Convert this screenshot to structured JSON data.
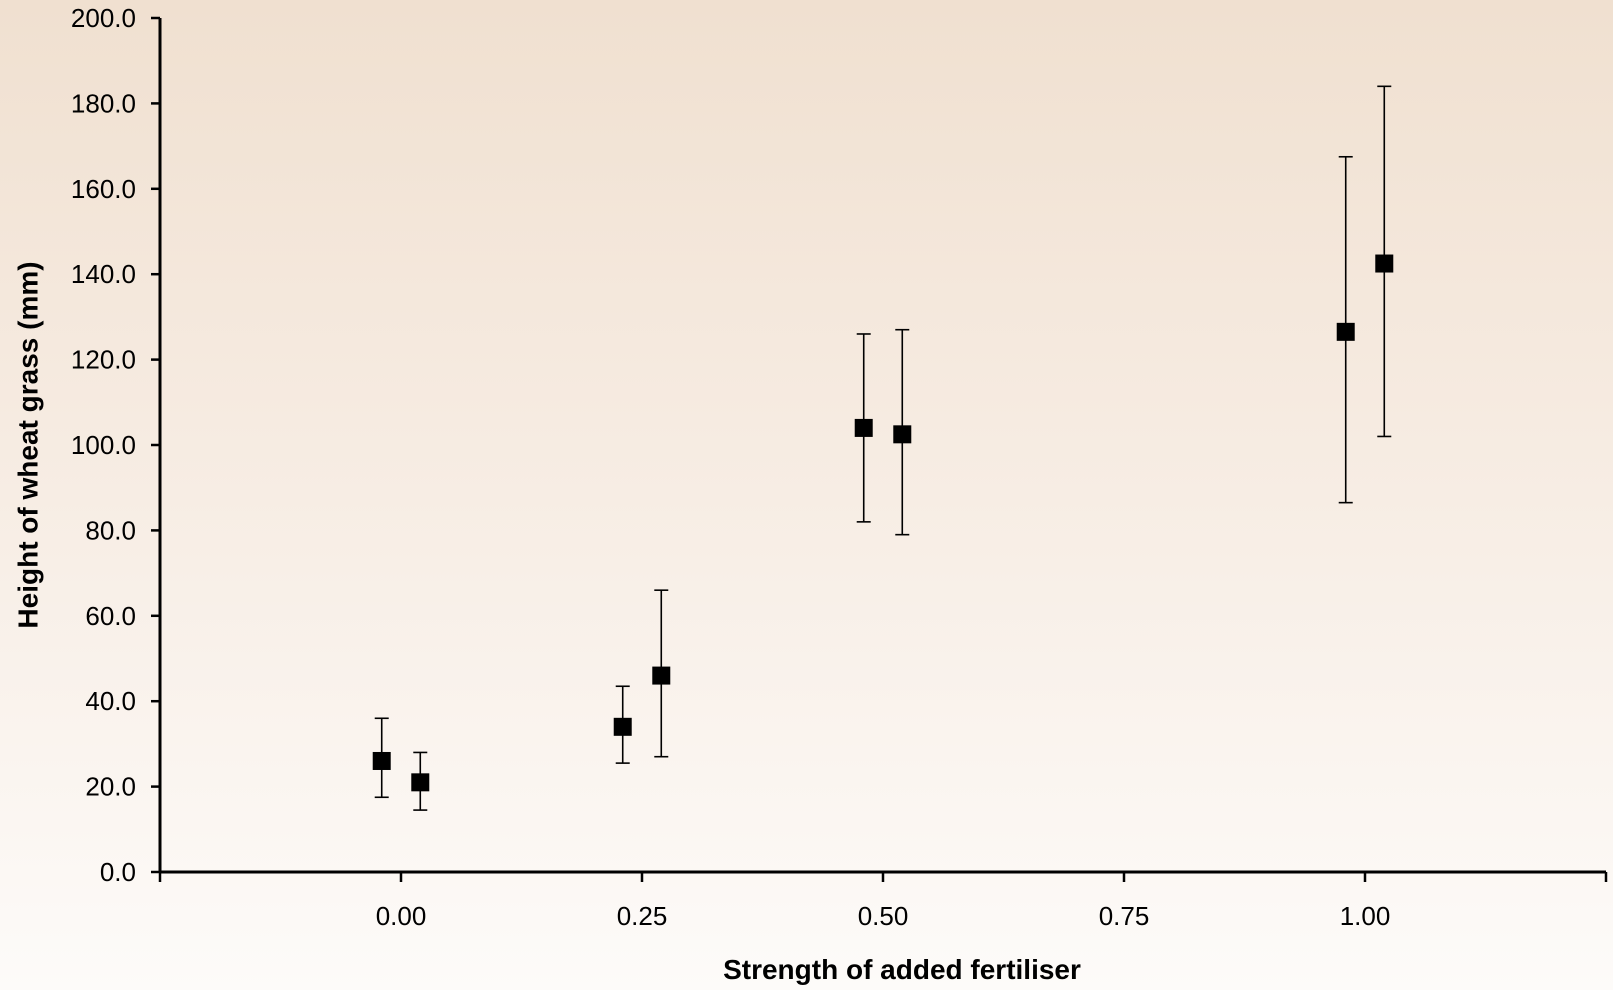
{
  "chart_data": {
    "type": "scatter",
    "title": "",
    "xlabel": "Strength of added fertiliser",
    "ylabel": "Height of wheat grass (mm)",
    "xlim": [
      -0.25,
      1.25
    ],
    "ylim": [
      0,
      200
    ],
    "x_ticks": [
      0,
      0.25,
      0.5,
      0.75,
      1.0
    ],
    "x_tick_labels": [
      "0.00",
      "0.25",
      "0.50",
      "0.75",
      "1.00"
    ],
    "y_ticks": [
      0,
      20,
      40,
      60,
      80,
      100,
      120,
      140,
      160,
      180,
      200
    ],
    "y_tick_labels": [
      "0.0",
      "20.0",
      "40.0",
      "60.0",
      "80.0",
      "100.0",
      "120.0",
      "140.0",
      "160.0",
      "180.0",
      "200.0"
    ],
    "grid": false,
    "legend": "none",
    "marker_color": "#000000",
    "points": [
      {
        "x": -0.02,
        "y": 26,
        "err_low": 17.5,
        "err_high": 36
      },
      {
        "x": 0.02,
        "y": 21,
        "err_low": 14.5,
        "err_high": 28
      },
      {
        "x": 0.23,
        "y": 34,
        "err_low": 25.5,
        "err_high": 43.5
      },
      {
        "x": 0.27,
        "y": 46,
        "err_low": 27,
        "err_high": 66
      },
      {
        "x": 0.48,
        "y": 104,
        "err_low": 82,
        "err_high": 126
      },
      {
        "x": 0.52,
        "y": 102.5,
        "err_low": 79,
        "err_high": 127
      },
      {
        "x": 0.98,
        "y": 126.5,
        "err_low": 86.5,
        "err_high": 167.5
      },
      {
        "x": 1.02,
        "y": 142.5,
        "err_low": 102,
        "err_high": 184
      }
    ]
  }
}
